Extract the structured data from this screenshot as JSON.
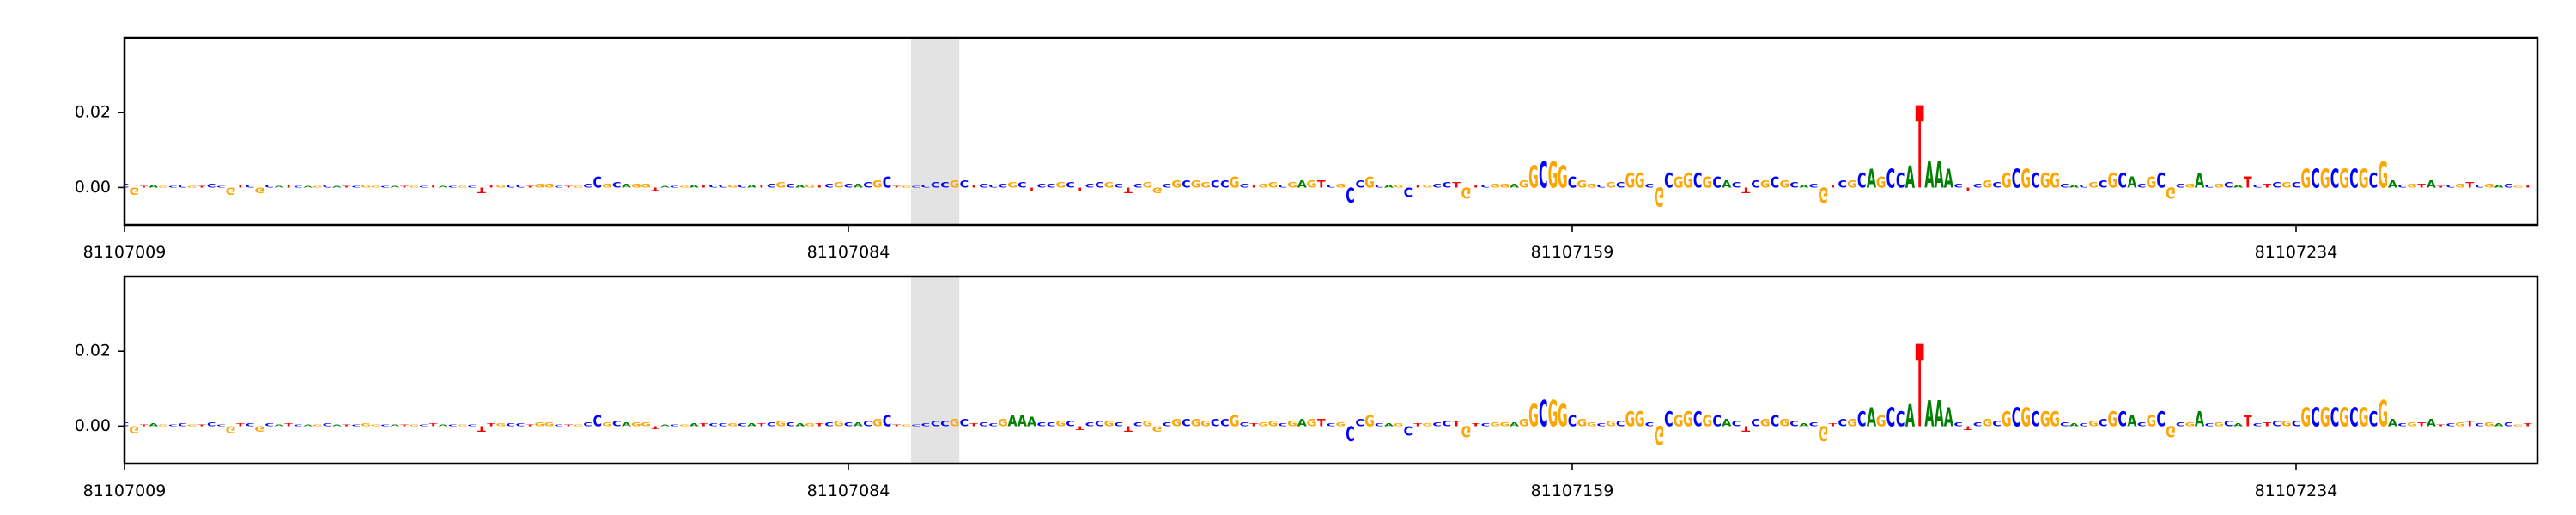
{
  "chart_data": [
    {
      "type": "logo",
      "start": 81107009,
      "xlim": [
        81107009,
        81107259
      ],
      "xticks": [
        81107009,
        81107084,
        81107159,
        81107234
      ],
      "ylim": [
        -0.01,
        0.04
      ],
      "yticks": [
        {
          "value": 0,
          "label": "0.00"
        },
        {
          "value": 0.02,
          "label": "0.02"
        }
      ],
      "highlight": [
        81107090.5,
        81107095.5
      ],
      "colors": {
        "A": "#008000",
        "C": "#0000ff",
        "G": "#ffa500",
        "T": "#ff0000"
      },
      "bases": [
        "C",
        "G",
        "T",
        "A",
        "G",
        "C",
        "C",
        "G",
        "T",
        "C",
        "C",
        "G",
        "T",
        "C",
        "G",
        "C",
        "A",
        "T",
        "C",
        "A",
        "G",
        "C",
        "A",
        "T",
        "C",
        "G",
        "G",
        "C",
        "A",
        "T",
        "G",
        "C",
        "T",
        "A",
        "C",
        "G",
        "C",
        "T",
        "T",
        "G",
        "C",
        "C",
        "T",
        "G",
        "G",
        "C",
        "T",
        "G",
        "C",
        "C",
        "G",
        "C",
        "A",
        "G",
        "G",
        "T",
        "A",
        "C",
        "G",
        "A",
        "T",
        "C",
        "C",
        "G",
        "C",
        "A",
        "T",
        "C",
        "G",
        "C",
        "A",
        "G",
        "T",
        "C",
        "G",
        "C",
        "A",
        "C",
        "G",
        "C",
        "T",
        "G",
        "C",
        "C",
        "C",
        "C",
        "G",
        "C",
        "T",
        "C",
        "C",
        "C",
        "G",
        "C",
        "T",
        "C",
        "C",
        "G",
        "C",
        "T",
        "C",
        "C",
        "G",
        "C",
        "T",
        "C",
        "G",
        "G",
        "C",
        "G",
        "C",
        "G",
        "G",
        "C",
        "C",
        "G",
        "C",
        "T",
        "G",
        "G",
        "C",
        "G",
        "A",
        "G",
        "T",
        "C",
        "G",
        "C",
        "C",
        "G",
        "C",
        "A",
        "G",
        "C",
        "T",
        "G",
        "C",
        "C",
        "T",
        "G",
        "T",
        "C",
        "G",
        "G",
        "A",
        "G",
        "G",
        "C",
        "G",
        "G",
        "C",
        "G",
        "G",
        "C",
        "G",
        "C",
        "G",
        "G",
        "C",
        "G",
        "C",
        "G",
        "G",
        "C",
        "G",
        "C",
        "A",
        "C",
        "T",
        "C",
        "G",
        "C",
        "G",
        "C",
        "A",
        "C",
        "G",
        "T",
        "C",
        "G",
        "C",
        "A",
        "G",
        "C",
        "C",
        "A",
        "T",
        "A",
        "A",
        "A",
        "C",
        "T",
        "C",
        "G",
        "C",
        "G",
        "C",
        "G",
        "C",
        "G",
        "G",
        "C",
        "A",
        "C",
        "G",
        "C",
        "G",
        "C",
        "A",
        "C",
        "G",
        "C",
        "G",
        "C",
        "G",
        "A",
        "C",
        "G",
        "C",
        "A",
        "T",
        "C",
        "T",
        "C",
        "G",
        "C",
        "G",
        "C",
        "G",
        "C",
        "G",
        "C",
        "G",
        "C",
        "G",
        "A",
        "C",
        "G",
        "T",
        "A",
        "T",
        "C",
        "G",
        "T",
        "C",
        "G",
        "A",
        "C",
        "G",
        "T"
      ],
      "values": [
        0.001,
        -0.002,
        0.0005,
        0.0008,
        0.0005,
        0.0005,
        0.0008,
        0.0005,
        0.0005,
        0.001,
        0.0005,
        -0.002,
        0.0008,
        0.0008,
        -0.0015,
        0.0008,
        0.0005,
        0.0008,
        0.0005,
        0.0005,
        0.0005,
        0.0008,
        0.0005,
        0.0005,
        0.0005,
        0.0008,
        0.0005,
        0.0005,
        0.0005,
        0.0005,
        0.0005,
        0.0005,
        0.0008,
        0.0005,
        0.0005,
        0.0005,
        0.0005,
        -0.0015,
        0.0008,
        0.0008,
        0.0008,
        0.0008,
        0.0005,
        0.001,
        0.001,
        0.0005,
        0.0005,
        0.0005,
        0.001,
        0.003,
        0.001,
        0.0015,
        0.001,
        0.001,
        0.001,
        -0.0008,
        0.0005,
        0.0005,
        0.0005,
        0.0008,
        0.0008,
        0.0008,
        0.0008,
        0.0008,
        0.0008,
        0.0008,
        0.0008,
        0.001,
        0.0015,
        0.001,
        0.0008,
        0.0008,
        0.0008,
        0.001,
        0.0015,
        0.001,
        0.001,
        0.0015,
        0.002,
        0.003,
        0.0005,
        0.0005,
        0.0005,
        0.0008,
        0.0015,
        0.0015,
        0.002,
        0.002,
        0.0008,
        0.001,
        0.0008,
        0.001,
        0.0015,
        0.0015,
        -0.001,
        0.001,
        0.001,
        0.0015,
        0.0015,
        -0.001,
        0.001,
        0.0015,
        0.0015,
        0.001,
        -0.0015,
        0.001,
        0.0015,
        -0.0015,
        0.001,
        0.002,
        0.002,
        0.002,
        0.0015,
        0.002,
        0.002,
        0.003,
        0.001,
        0.0008,
        0.001,
        0.0015,
        0.0008,
        0.0015,
        0.002,
        0.002,
        0.002,
        0.0008,
        0.001,
        -0.004,
        0.002,
        0.003,
        0.0008,
        0.0008,
        0.0008,
        -0.0025,
        0.0008,
        0.0008,
        0.001,
        0.0015,
        0.0015,
        -0.003,
        0.0008,
        0.0008,
        0.001,
        0.001,
        0.001,
        0.002,
        0.006,
        0.007,
        0.007,
        0.006,
        0.003,
        0.002,
        0.001,
        0.0008,
        0.0015,
        0.0015,
        0.004,
        0.004,
        0.001,
        -0.005,
        0.004,
        0.003,
        0.004,
        0.004,
        0.003,
        0.003,
        0.002,
        0.0015,
        -0.0015,
        0.002,
        0.002,
        0.003,
        0.002,
        0.0015,
        0.0008,
        0.001,
        -0.004,
        0.0008,
        0.002,
        0.002,
        0.004,
        0.005,
        0.003,
        0.005,
        0.004,
        0.006,
        0.022,
        0.007,
        0.007,
        0.005,
        0.001,
        -0.001,
        0.001,
        0.002,
        0.0015,
        0.004,
        0.005,
        0.005,
        0.004,
        0.004,
        0.004,
        0.001,
        0.0008,
        0.0008,
        0.0015,
        0.002,
        0.004,
        0.004,
        0.003,
        0.001,
        0.003,
        0.004,
        -0.003,
        0.001,
        0.001,
        0.004,
        0.0008,
        0.001,
        0.0015,
        0.0008,
        0.003,
        0.0008,
        0.001,
        0.0015,
        0.0015,
        0.0015,
        0.005,
        0.005,
        0.005,
        0.005,
        0.005,
        0.005,
        0.005,
        0.004,
        0.007,
        0.002,
        0.0008,
        0.001,
        0.001,
        0.002,
        0.0005,
        0.0008,
        0.001,
        0.0015,
        0.0008,
        0.001,
        0.0008,
        0.001,
        0.0005,
        0.0008
      ]
    },
    {
      "type": "logo",
      "start": 81107009,
      "xlim": [
        81107009,
        81107259
      ],
      "xticks": [
        81107009,
        81107084,
        81107159,
        81107234
      ],
      "ylim": [
        -0.01,
        0.04
      ],
      "yticks": [
        {
          "value": 0,
          "label": "0.00"
        },
        {
          "value": 0.02,
          "label": "0.02"
        }
      ],
      "highlight": [
        81107090.5,
        81107095.5
      ],
      "colors": {
        "A": "#008000",
        "C": "#0000ff",
        "G": "#ffa500",
        "T": "#ff0000"
      },
      "bases": [
        "C",
        "G",
        "T",
        "A",
        "G",
        "C",
        "C",
        "G",
        "T",
        "C",
        "C",
        "G",
        "T",
        "C",
        "G",
        "C",
        "A",
        "T",
        "C",
        "A",
        "G",
        "C",
        "A",
        "T",
        "C",
        "G",
        "G",
        "C",
        "A",
        "T",
        "G",
        "C",
        "T",
        "A",
        "C",
        "G",
        "C",
        "T",
        "T",
        "G",
        "C",
        "C",
        "T",
        "G",
        "G",
        "C",
        "T",
        "G",
        "C",
        "C",
        "G",
        "C",
        "A",
        "G",
        "G",
        "T",
        "A",
        "C",
        "G",
        "A",
        "T",
        "C",
        "C",
        "G",
        "C",
        "A",
        "T",
        "C",
        "G",
        "C",
        "A",
        "G",
        "T",
        "C",
        "G",
        "C",
        "A",
        "C",
        "G",
        "C",
        "T",
        "G",
        "C",
        "C",
        "C",
        "C",
        "G",
        "C",
        "T",
        "C",
        "C",
        "G",
        "A",
        "A",
        "A",
        "C",
        "C",
        "G",
        "C",
        "T",
        "C",
        "C",
        "G",
        "C",
        "T",
        "C",
        "G",
        "G",
        "C",
        "G",
        "C",
        "G",
        "G",
        "C",
        "C",
        "G",
        "C",
        "T",
        "G",
        "G",
        "C",
        "G",
        "A",
        "G",
        "T",
        "C",
        "G",
        "C",
        "C",
        "G",
        "C",
        "A",
        "G",
        "C",
        "T",
        "G",
        "C",
        "C",
        "T",
        "G",
        "T",
        "C",
        "G",
        "G",
        "A",
        "G",
        "G",
        "C",
        "G",
        "G",
        "C",
        "G",
        "G",
        "C",
        "G",
        "C",
        "G",
        "G",
        "C",
        "G",
        "C",
        "G",
        "G",
        "C",
        "G",
        "C",
        "A",
        "C",
        "T",
        "C",
        "G",
        "C",
        "G",
        "C",
        "A",
        "C",
        "G",
        "T",
        "C",
        "G",
        "C",
        "A",
        "G",
        "C",
        "C",
        "A",
        "T",
        "A",
        "A",
        "A",
        "C",
        "T",
        "C",
        "G",
        "C",
        "G",
        "C",
        "G",
        "C",
        "G",
        "G",
        "C",
        "A",
        "C",
        "G",
        "C",
        "G",
        "C",
        "A",
        "C",
        "G",
        "C",
        "G",
        "C",
        "G",
        "A",
        "C",
        "G",
        "C",
        "A",
        "T",
        "C",
        "T",
        "C",
        "G",
        "C",
        "G",
        "C",
        "G",
        "C",
        "G",
        "C",
        "G",
        "C",
        "G",
        "A",
        "C",
        "G",
        "T",
        "A",
        "T",
        "C",
        "G",
        "T",
        "C",
        "G",
        "A",
        "C",
        "G",
        "T"
      ],
      "values": [
        0.001,
        -0.002,
        0.0005,
        0.0008,
        0.0005,
        0.0005,
        0.0008,
        0.0005,
        0.0005,
        0.001,
        0.0005,
        -0.002,
        0.0008,
        0.0008,
        -0.0015,
        0.0008,
        0.0005,
        0.0008,
        0.0005,
        0.0005,
        0.0005,
        0.0008,
        0.0005,
        0.0005,
        0.0005,
        0.0008,
        0.0005,
        0.0005,
        0.0005,
        0.0005,
        0.0005,
        0.0005,
        0.0008,
        0.0005,
        0.0005,
        0.0005,
        0.0005,
        -0.0015,
        0.0008,
        0.0008,
        0.0008,
        0.0008,
        0.0005,
        0.001,
        0.001,
        0.0005,
        0.0005,
        0.0005,
        0.001,
        0.003,
        0.001,
        0.0015,
        0.001,
        0.001,
        0.001,
        -0.0008,
        0.0005,
        0.0005,
        0.0005,
        0.0008,
        0.0008,
        0.0008,
        0.0008,
        0.0008,
        0.0008,
        0.0008,
        0.0008,
        0.001,
        0.0015,
        0.001,
        0.0008,
        0.0008,
        0.0008,
        0.001,
        0.0015,
        0.001,
        0.001,
        0.0015,
        0.002,
        0.003,
        0.0005,
        0.0005,
        0.0005,
        0.0008,
        0.0015,
        0.0015,
        0.002,
        0.002,
        0.0008,
        0.001,
        0.0008,
        0.002,
        0.003,
        0.003,
        0.0025,
        0.001,
        0.001,
        0.0015,
        0.0015,
        -0.001,
        0.001,
        0.0015,
        0.0015,
        0.001,
        -0.0015,
        0.001,
        0.0015,
        -0.0015,
        0.001,
        0.002,
        0.002,
        0.002,
        0.0015,
        0.002,
        0.002,
        0.003,
        0.001,
        0.0008,
        0.001,
        0.0015,
        0.0008,
        0.0015,
        0.002,
        0.002,
        0.002,
        0.0008,
        0.001,
        -0.004,
        0.002,
        0.003,
        0.0008,
        0.0008,
        0.0008,
        -0.0025,
        0.0008,
        0.0008,
        0.001,
        0.0015,
        0.0015,
        -0.003,
        0.0008,
        0.0008,
        0.001,
        0.001,
        0.001,
        0.002,
        0.006,
        0.007,
        0.007,
        0.006,
        0.003,
        0.002,
        0.001,
        0.0008,
        0.0015,
        0.0015,
        0.004,
        0.004,
        0.001,
        -0.005,
        0.004,
        0.003,
        0.004,
        0.004,
        0.003,
        0.003,
        0.002,
        0.0015,
        -0.0015,
        0.002,
        0.002,
        0.003,
        0.002,
        0.0015,
        0.0008,
        0.001,
        -0.004,
        0.0008,
        0.002,
        0.002,
        0.004,
        0.005,
        0.003,
        0.005,
        0.004,
        0.006,
        0.022,
        0.007,
        0.007,
        0.005,
        0.001,
        -0.001,
        0.001,
        0.002,
        0.0015,
        0.004,
        0.005,
        0.005,
        0.004,
        0.004,
        0.004,
        0.001,
        0.0008,
        0.0008,
        0.0015,
        0.002,
        0.004,
        0.004,
        0.003,
        0.001,
        0.003,
        0.004,
        -0.003,
        0.001,
        0.001,
        0.004,
        0.0008,
        0.001,
        0.0015,
        0.0008,
        0.003,
        0.0008,
        0.001,
        0.0015,
        0.0015,
        0.0015,
        0.005,
        0.005,
        0.005,
        0.005,
        0.005,
        0.005,
        0.005,
        0.004,
        0.007,
        0.002,
        0.0008,
        0.001,
        0.001,
        0.002,
        0.0005,
        0.0008,
        0.001,
        0.0015,
        0.0008,
        0.001,
        0.0008,
        0.001,
        0.0005,
        0.0008
      ]
    }
  ]
}
